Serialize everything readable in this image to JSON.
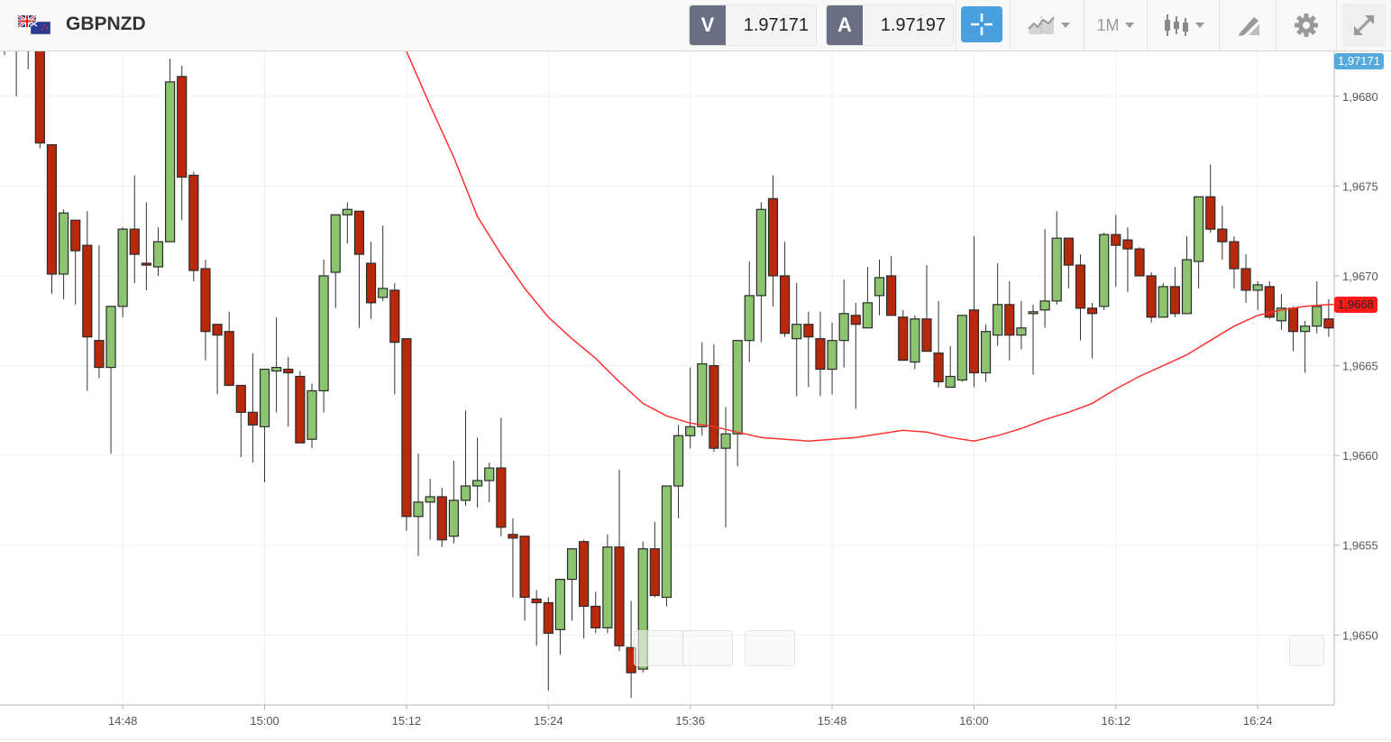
{
  "header": {
    "symbol": "GBPNZD",
    "flag_icon": "gb-nz-flag-icon",
    "bid_label": "V",
    "bid_value": "1.97171",
    "ask_label": "A",
    "ask_value": "1.97197",
    "timeframe": "1M",
    "icons": [
      "crosshair-icon",
      "chart-type-icon",
      "candlestick-icon",
      "draw-tool-icon",
      "gear-icon",
      "expand-icon"
    ],
    "accent_color": "#4a9fdf"
  },
  "badges": {
    "bid_price": "1,97171",
    "ma_price": "1,9668",
    "bid_color": "#55a9dc",
    "ma_color": "#ff1a1a"
  },
  "chart_data": {
    "type": "candlestick",
    "title": "",
    "xlabel": "",
    "ylabel": "",
    "ylim": [
      1.96461,
      1.96825
    ],
    "grid": true,
    "colors": {
      "up": "#8dc470",
      "down": "#b8290c",
      "ma": "#ff3030"
    },
    "y_ticks": [
      {
        "value": 1.968,
        "label": "1,9680"
      },
      {
        "value": 1.9675,
        "label": "1,9675"
      },
      {
        "value": 1.967,
        "label": "1,9670"
      },
      {
        "value": 1.9665,
        "label": "1,9665"
      },
      {
        "value": 1.966,
        "label": "1,9660"
      },
      {
        "value": 1.9655,
        "label": "1,9655"
      },
      {
        "value": 1.965,
        "label": "1,9650"
      }
    ],
    "x_ticks": [
      "14:48",
      "15:00",
      "15:12",
      "15:24",
      "15:36",
      "15:48",
      "16:00",
      "16:12",
      "16:24"
    ],
    "candles_fields": [
      "time",
      "open",
      "high",
      "low",
      "close"
    ],
    "candles": [
      [
        "14:38",
        1.9686,
        1.9688,
        1.96823,
        1.9685
      ],
      [
        "14:39",
        1.9685,
        1.9686,
        1.968,
        1.9684
      ],
      [
        "14:40",
        1.9684,
        1.9688,
        1.96815,
        1.9687
      ],
      [
        "14:41",
        1.9687,
        1.9688,
        1.96771,
        1.96774
      ],
      [
        "14:42",
        1.96773,
        1.96773,
        1.9669,
        1.96701
      ],
      [
        "14:43",
        1.96701,
        1.96737,
        1.96687,
        1.96735
      ],
      [
        "14:44",
        1.96731,
        1.96731,
        1.96684,
        1.96714
      ],
      [
        "14:45",
        1.96717,
        1.96736,
        1.96636,
        1.96666
      ],
      [
        "14:46",
        1.96664,
        1.96717,
        1.96643,
        1.96649
      ],
      [
        "14:47",
        1.96649,
        1.96683,
        1.96601,
        1.96683
      ],
      [
        "14:48",
        1.96683,
        1.96727,
        1.96677,
        1.96726
      ],
      [
        "14:49",
        1.96726,
        1.96756,
        1.96696,
        1.96712
      ],
      [
        "14:50",
        1.96707,
        1.96741,
        1.96692,
        1.96706
      ],
      [
        "14:51",
        1.96705,
        1.96727,
        1.967,
        1.96719
      ],
      [
        "14:52",
        1.96719,
        1.96821,
        1.96719,
        1.96808
      ],
      [
        "14:53",
        1.96811,
        1.96817,
        1.96731,
        1.96755
      ],
      [
        "14:54",
        1.96756,
        1.96758,
        1.96697,
        1.96703
      ],
      [
        "14:55",
        1.96704,
        1.96709,
        1.96653,
        1.96669
      ],
      [
        "14:56",
        1.96673,
        1.96673,
        1.96634,
        1.96667
      ],
      [
        "14:57",
        1.96669,
        1.9668,
        1.96639,
        1.96639
      ],
      [
        "14:58",
        1.96639,
        1.96639,
        1.96599,
        1.96624
      ],
      [
        "14:59",
        1.96624,
        1.96657,
        1.96596,
        1.96617
      ],
      [
        "15:00",
        1.96616,
        1.96648,
        1.96585,
        1.96648
      ],
      [
        "15:01",
        1.96647,
        1.96677,
        1.96624,
        1.96649
      ],
      [
        "15:02",
        1.96648,
        1.96655,
        1.96616,
        1.96646
      ],
      [
        "15:03",
        1.96644,
        1.96647,
        1.96607,
        1.96607
      ],
      [
        "15:04",
        1.96609,
        1.9664,
        1.96604,
        1.96636
      ],
      [
        "15:05",
        1.96636,
        1.96709,
        1.96624,
        1.967
      ],
      [
        "15:06",
        1.96702,
        1.96734,
        1.96682,
        1.96734
      ],
      [
        "15:07",
        1.96734,
        1.96741,
        1.96718,
        1.96737
      ],
      [
        "15:08",
        1.96736,
        1.96736,
        1.96671,
        1.96712
      ],
      [
        "15:09",
        1.96707,
        1.96719,
        1.96676,
        1.96685
      ],
      [
        "15:10",
        1.96688,
        1.96728,
        1.96686,
        1.96693
      ],
      [
        "15:11",
        1.96692,
        1.96696,
        1.96634,
        1.96663
      ],
      [
        "15:12",
        1.96665,
        1.96665,
        1.96558,
        1.96566
      ],
      [
        "15:13",
        1.96566,
        1.96601,
        1.96544,
        1.96574
      ],
      [
        "15:14",
        1.96574,
        1.96587,
        1.96553,
        1.96577
      ],
      [
        "15:15",
        1.96577,
        1.96582,
        1.96549,
        1.96553
      ],
      [
        "15:16",
        1.96555,
        1.96597,
        1.96551,
        1.96575
      ],
      [
        "15:17",
        1.96575,
        1.96625,
        1.96572,
        1.96583
      ],
      [
        "15:18",
        1.96583,
        1.9661,
        1.96571,
        1.96586
      ],
      [
        "15:19",
        1.96586,
        1.96596,
        1.96574,
        1.96593
      ],
      [
        "15:20",
        1.96593,
        1.96621,
        1.96555,
        1.9656
      ],
      [
        "15:21",
        1.96556,
        1.96565,
        1.96521,
        1.96554
      ],
      [
        "15:22",
        1.96555,
        1.96555,
        1.96508,
        1.96521
      ],
      [
        "15:23",
        1.9652,
        1.96525,
        1.96494,
        1.96518
      ],
      [
        "15:24",
        1.96518,
        1.96521,
        1.96469,
        1.96501
      ],
      [
        "15:25",
        1.96503,
        1.96531,
        1.96489,
        1.96531
      ],
      [
        "15:26",
        1.96531,
        1.96548,
        1.96508,
        1.96548
      ],
      [
        "15:27",
        1.96552,
        1.96553,
        1.96498,
        1.96516
      ],
      [
        "15:28",
        1.96516,
        1.96524,
        1.96501,
        1.96504
      ],
      [
        "15:29",
        1.96504,
        1.96556,
        1.96501,
        1.96549
      ],
      [
        "15:30",
        1.96549,
        1.96592,
        1.96491,
        1.96494
      ],
      [
        "15:31",
        1.96493,
        1.96519,
        1.96465,
        1.96479
      ],
      [
        "15:32",
        1.96481,
        1.96552,
        1.96479,
        1.96548
      ],
      [
        "15:33",
        1.96548,
        1.96563,
        1.96521,
        1.96522
      ],
      [
        "15:34",
        1.96521,
        1.96583,
        1.96516,
        1.96583
      ],
      [
        "15:35",
        1.96583,
        1.96617,
        1.96565,
        1.96611
      ],
      [
        "15:36",
        1.96611,
        1.96649,
        1.96604,
        1.96616
      ],
      [
        "15:37",
        1.96616,
        1.96663,
        1.96611,
        1.96651
      ],
      [
        "15:38",
        1.9665,
        1.96662,
        1.96602,
        1.96604
      ],
      [
        "15:39",
        1.96604,
        1.96627,
        1.9656,
        1.96612
      ],
      [
        "15:40",
        1.96612,
        1.96664,
        1.96594,
        1.96664
      ],
      [
        "15:41",
        1.96664,
        1.96708,
        1.96652,
        1.96689
      ],
      [
        "15:42",
        1.96689,
        1.96741,
        1.96663,
        1.96737
      ],
      [
        "15:43",
        1.96743,
        1.96756,
        1.96683,
        1.967
      ],
      [
        "15:44",
        1.967,
        1.96719,
        1.96666,
        1.96668
      ],
      [
        "15:45",
        1.96665,
        1.96696,
        1.96633,
        1.96673
      ],
      [
        "15:46",
        1.96673,
        1.9668,
        1.96638,
        1.96666
      ],
      [
        "15:47",
        1.96665,
        1.9668,
        1.96633,
        1.96648
      ],
      [
        "15:48",
        1.96648,
        1.96674,
        1.96634,
        1.96664
      ],
      [
        "15:49",
        1.96664,
        1.96698,
        1.96649,
        1.96679
      ],
      [
        "15:50",
        1.96678,
        1.96685,
        1.96626,
        1.96673
      ],
      [
        "15:51",
        1.96671,
        1.96705,
        1.96671,
        1.96685
      ],
      [
        "15:52",
        1.96689,
        1.96709,
        1.96678,
        1.96699
      ],
      [
        "15:53",
        1.967,
        1.96711,
        1.96678,
        1.96678
      ],
      [
        "15:54",
        1.96677,
        1.96681,
        1.96653,
        1.96653
      ],
      [
        "15:55",
        1.96652,
        1.96678,
        1.96648,
        1.96676
      ],
      [
        "15:56",
        1.96676,
        1.96706,
        1.96658,
        1.96658
      ],
      [
        "15:57",
        1.96657,
        1.96686,
        1.96638,
        1.96641
      ],
      [
        "15:58",
        1.96638,
        1.96661,
        1.96638,
        1.96644
      ],
      [
        "15:59",
        1.96642,
        1.96678,
        1.96641,
        1.96678
      ],
      [
        "16:00",
        1.96681,
        1.96722,
        1.96638,
        1.96646
      ],
      [
        "16:01",
        1.96646,
        1.96673,
        1.96641,
        1.96669
      ],
      [
        "16:02",
        1.96667,
        1.96707,
        1.96661,
        1.96684
      ],
      [
        "16:03",
        1.96684,
        1.96697,
        1.96653,
        1.96667
      ],
      [
        "16:04",
        1.96667,
        1.96686,
        1.96659,
        1.96671
      ],
      [
        "16:05",
        1.96679,
        1.96684,
        1.96645,
        1.9668
      ],
      [
        "16:06",
        1.96681,
        1.96726,
        1.96671,
        1.96686
      ],
      [
        "16:07",
        1.96686,
        1.96736,
        1.96684,
        1.96721
      ],
      [
        "16:08",
        1.96721,
        1.96721,
        1.96693,
        1.96706
      ],
      [
        "16:09",
        1.96706,
        1.96712,
        1.96664,
        1.96682
      ],
      [
        "16:10",
        1.96682,
        1.96685,
        1.96654,
        1.96679
      ],
      [
        "16:11",
        1.96683,
        1.96724,
        1.96681,
        1.96723
      ],
      [
        "16:12",
        1.96723,
        1.96734,
        1.96694,
        1.96717
      ],
      [
        "16:13",
        1.9672,
        1.96727,
        1.96691,
        1.96715
      ],
      [
        "16:14",
        1.96715,
        1.96716,
        1.967,
        1.967
      ],
      [
        "16:15",
        1.967,
        1.96702,
        1.96674,
        1.96677
      ],
      [
        "16:16",
        1.96677,
        1.96696,
        1.96677,
        1.96694
      ],
      [
        "16:17",
        1.96694,
        1.96705,
        1.96677,
        1.96679
      ],
      [
        "16:18",
        1.96679,
        1.96722,
        1.96679,
        1.96709
      ],
      [
        "16:19",
        1.96708,
        1.96744,
        1.96693,
        1.96744
      ],
      [
        "16:20",
        1.96744,
        1.96762,
        1.96724,
        1.96726
      ],
      [
        "16:21",
        1.96726,
        1.96739,
        1.96709,
        1.96719
      ],
      [
        "16:22",
        1.96719,
        1.96722,
        1.96693,
        1.96704
      ],
      [
        "16:23",
        1.96704,
        1.96712,
        1.96685,
        1.96692
      ],
      [
        "16:24",
        1.96692,
        1.96697,
        1.96681,
        1.96695
      ],
      [
        "16:25",
        1.96694,
        1.96697,
        1.96676,
        1.96677
      ],
      [
        "16:26",
        1.96675,
        1.9669,
        1.9667,
        1.96682
      ],
      [
        "16:27",
        1.96682,
        1.96683,
        1.96658,
        1.96669
      ],
      [
        "16:28",
        1.96669,
        1.96675,
        1.96646,
        1.96672
      ],
      [
        "16:29",
        1.96672,
        1.96697,
        1.96668,
        1.96683
      ],
      [
        "16:30",
        1.96676,
        1.96687,
        1.96666,
        1.96671
      ]
    ],
    "moving_average": [
      [
        "15:12",
        1.96825
      ],
      [
        "15:14",
        1.96795
      ],
      [
        "15:16",
        1.96766
      ],
      [
        "15:18",
        1.96733
      ],
      [
        "15:20",
        1.96712
      ],
      [
        "15:22",
        1.96693
      ],
      [
        "15:24",
        1.96677
      ],
      [
        "15:26",
        1.96665
      ],
      [
        "15:28",
        1.96654
      ],
      [
        "15:30",
        1.96641
      ],
      [
        "15:32",
        1.96629
      ],
      [
        "15:34",
        1.96622
      ],
      [
        "15:36",
        1.96618
      ],
      [
        "15:38",
        1.96616
      ],
      [
        "15:40",
        1.96613
      ],
      [
        "15:42",
        1.9661
      ],
      [
        "15:44",
        1.96609
      ],
      [
        "15:46",
        1.96608
      ],
      [
        "15:48",
        1.96609
      ],
      [
        "15:50",
        1.9661
      ],
      [
        "15:52",
        1.96612
      ],
      [
        "15:54",
        1.96614
      ],
      [
        "15:56",
        1.96613
      ],
      [
        "15:58",
        1.9661
      ],
      [
        "16:00",
        1.96608
      ],
      [
        "16:02",
        1.96611
      ],
      [
        "16:04",
        1.96615
      ],
      [
        "16:06",
        1.9662
      ],
      [
        "16:08",
        1.96624
      ],
      [
        "16:10",
        1.96629
      ],
      [
        "16:12",
        1.96637
      ],
      [
        "16:14",
        1.96644
      ],
      [
        "16:16",
        1.9665
      ],
      [
        "16:18",
        1.96656
      ],
      [
        "16:20",
        1.96664
      ],
      [
        "16:22",
        1.96672
      ],
      [
        "16:24",
        1.96678
      ],
      [
        "16:26",
        1.96681
      ],
      [
        "16:28",
        1.96683
      ],
      [
        "16:30",
        1.96684
      ]
    ]
  }
}
